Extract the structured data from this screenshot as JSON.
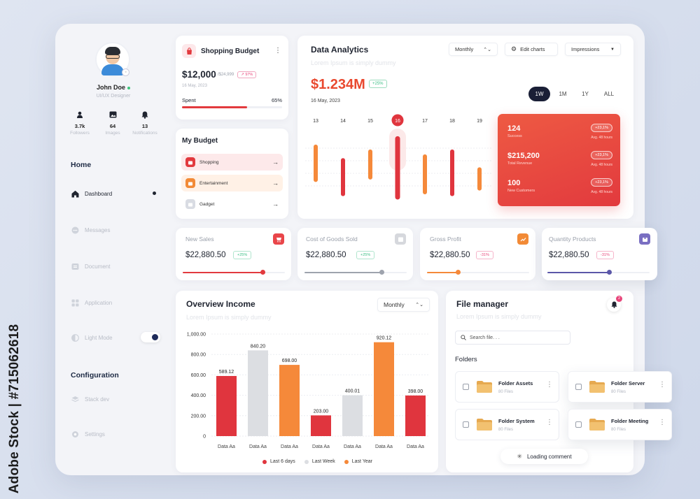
{
  "watermark": {
    "side_text": "Adobe Stock | #715062618"
  },
  "profile": {
    "name": "John Doe",
    "role": "UI/UX Designer"
  },
  "stats": [
    {
      "icon": "user-icon",
      "value": "3.7k",
      "label": "Followers"
    },
    {
      "icon": "image-icon",
      "value": "64",
      "label": "Images"
    },
    {
      "icon": "bell-icon",
      "value": "13",
      "label": "Notifications"
    }
  ],
  "nav": {
    "home_heading": "Home",
    "items": [
      {
        "icon": "home-icon",
        "label": "Dashboard"
      },
      {
        "icon": "message-icon",
        "label": "Messages"
      },
      {
        "icon": "document-icon",
        "label": "Document"
      },
      {
        "icon": "grid-icon",
        "label": "Application"
      },
      {
        "icon": "light-mode-icon",
        "label": "Light Mode"
      }
    ],
    "config_heading": "Configuration",
    "config_items": [
      {
        "icon": "layers-icon",
        "label": "Stack dev"
      },
      {
        "icon": "gear-icon",
        "label": "Settings"
      }
    ]
  },
  "shopping_budget": {
    "title": "Shopping Budget",
    "amount": "$12,000",
    "total": "/$24,999",
    "badge": "97%",
    "date": "16 May, 2023",
    "spent_label": "Spent",
    "spent_percent": "65%",
    "spent_fraction": 0.65
  },
  "my_budget": {
    "title": "My Budget",
    "items": [
      {
        "label": "Shopping",
        "bg": "#fde9ea",
        "icon_color": "#e23a3e"
      },
      {
        "label": "Entertainment",
        "bg": "#fff1e6",
        "icon_color": "#f28a36"
      },
      {
        "label": "Gadget",
        "bg": "#ffffff",
        "icon_color": "#d9dce3"
      }
    ]
  },
  "analytics": {
    "title": "Data Analytics",
    "subtitle": "Lorem Ipsum is simply dummy",
    "monthly_select": "Monthly",
    "edit_charts": "Edit charts",
    "impressions_select": "Impressions",
    "amount": "$1.234M",
    "badge": "+25%",
    "date": "16 May, 2023",
    "ranges": [
      "1W",
      "1M",
      "1Y",
      "ALL"
    ],
    "active_range": "1W",
    "chart_data": {
      "type": "bar",
      "categories": [
        "13",
        "14",
        "15",
        "16",
        "17",
        "18",
        "19"
      ],
      "series": [
        {
          "low": [
            0.28,
            0.05,
            0.32,
            0.0,
            0.08,
            0.05,
            0.14
          ],
          "high": [
            0.82,
            0.6,
            0.74,
            0.95,
            0.66,
            0.74,
            0.45
          ]
        }
      ],
      "colors": [
        "#f5893a",
        "#e0353e",
        "#f5893a",
        "#e0353e",
        "#f5893a",
        "#e0353e",
        "#f5893a"
      ],
      "highlight": "16"
    },
    "summary": [
      {
        "value": "124",
        "label": "Success",
        "pill": "+23,1%",
        "sub": "Avg. 48 hours"
      },
      {
        "value": "$215,200",
        "label": "Total Revenue",
        "pill": "+23,1%",
        "sub": "Avg. 48 hours"
      },
      {
        "value": "100",
        "label": "New Customers",
        "pill": "+23,1%",
        "sub": "Avg. 48 hours"
      }
    ]
  },
  "kpis": [
    {
      "title": "New Sales",
      "value": "$22,880.50",
      "badge": "+25%",
      "badge_color": "#3bbf85",
      "bar_color": "#e23a3e",
      "icon_bg": "#e9464a",
      "fraction": 0.78
    },
    {
      "title": "Cost of Goods Sold",
      "value": "$22,880.50",
      "badge": "+25%",
      "badge_color": "#3bbf85",
      "bar_color": "#9ea3ad",
      "icon_bg": "#d6d8dd",
      "fraction": 0.75
    },
    {
      "title": "Gross Profit",
      "value": "$22,880.50",
      "badge": "-31%",
      "badge_color": "#e8457a",
      "bar_color": "#f5893a",
      "icon_bg": "#f28a36",
      "fraction": 0.3
    },
    {
      "title": "Quantity Products",
      "value": "$22,880.50",
      "badge": "-31%",
      "badge_color": "#e8457a",
      "bar_color": "#5b57a8",
      "icon_bg": "#7a6fc2",
      "fraction": 0.6
    }
  ],
  "income": {
    "title": "Overview Income",
    "subtitle": "Lorem Ipsum is simply dummy",
    "select": "Monthly",
    "chart_data": {
      "type": "bar",
      "categories": [
        "Data Aa",
        "Data Aa",
        "Data Aa",
        "Data Aa",
        "Data Aa",
        "Data Aa",
        "Data Aa"
      ],
      "values": [
        589.12,
        840.2,
        698.0,
        203.0,
        400.01,
        920.12,
        398.0
      ],
      "value_labels": [
        "589.12",
        "840.20",
        "698.00",
        "203.00",
        "400.01",
        "920.12",
        "398.00"
      ],
      "series_index": [
        0,
        1,
        2,
        0,
        1,
        2,
        0
      ],
      "series": [
        {
          "name": "Last 6 days",
          "color": "#e0353e"
        },
        {
          "name": "Last Week",
          "color": "#dcdee2"
        },
        {
          "name": "Last Year",
          "color": "#f5893a"
        }
      ],
      "yticks": [
        "1,000.00",
        "800.00",
        "600.00",
        "400.00",
        "200.00",
        "0"
      ],
      "ylim": [
        0,
        1000
      ]
    }
  },
  "file_manager": {
    "title": "File manager",
    "subtitle": "Lorem Ipsum is simply dummy",
    "notification_count": "2",
    "search_placeholder": "Search file. . .",
    "folders_heading": "Folders",
    "folders": [
      {
        "name": "Folder Assets",
        "count": "80 Files"
      },
      {
        "name": "Folder Server",
        "count": "80 Files"
      },
      {
        "name": "Folder System",
        "count": "80 Files"
      },
      {
        "name": "Folder Meeting",
        "count": "80 Files"
      }
    ],
    "loading_label": "Loading comment"
  }
}
